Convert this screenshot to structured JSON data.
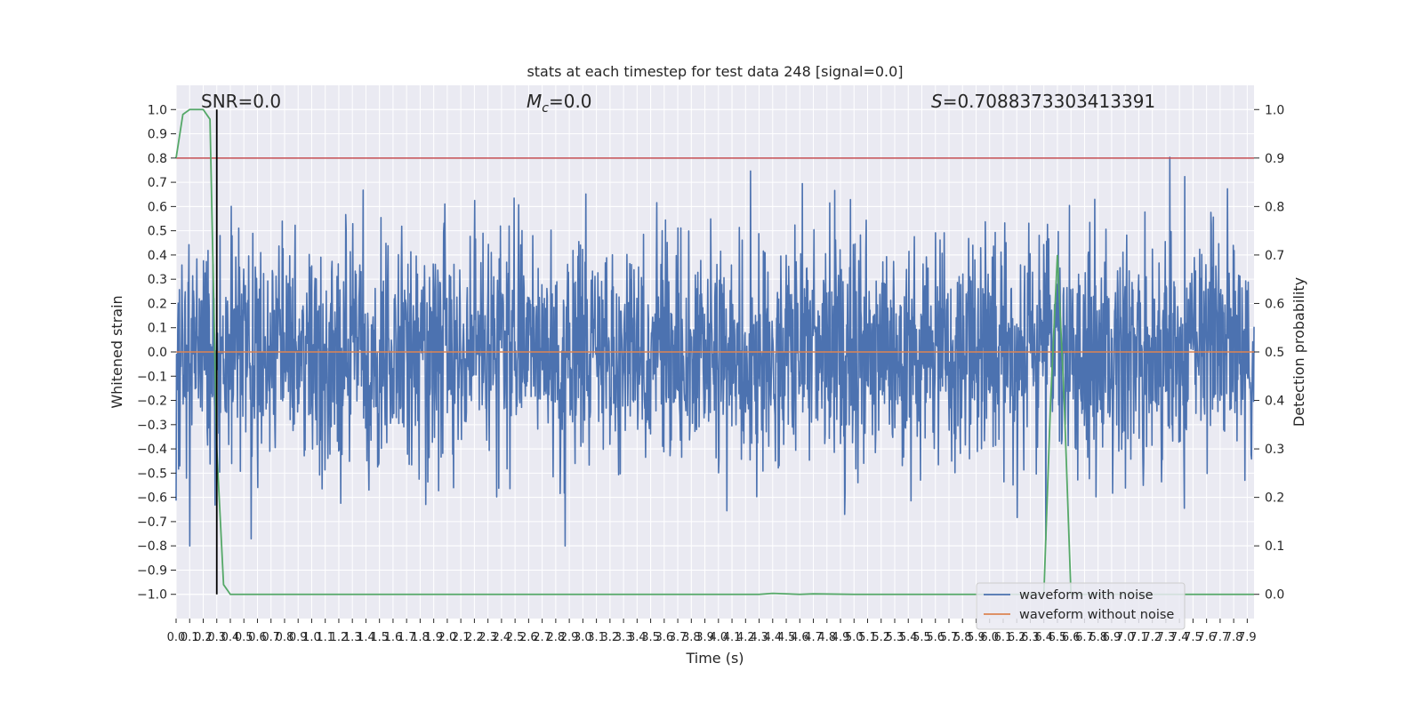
{
  "chart_data": {
    "type": "line",
    "title": "stats at each timestep for test data 248 [signal=0.0]",
    "xlabel": "Time (s)",
    "ylabel": "Whitened strain",
    "y2label": "Detection probability",
    "xlim": [
      0.0,
      7.95
    ],
    "ylim": [
      -1.1,
      1.1
    ],
    "y2lim": [
      -0.05,
      1.05
    ],
    "grid": true,
    "legend_position": "lower right",
    "annotations": {
      "snr": "SNR=0.0",
      "mc_symbol": "M",
      "mc_sub": "c",
      "mc_value": "=0.0",
      "s_symbol": "S",
      "s_value": "=0.7088373303413391"
    },
    "yticks": [
      "1.0",
      "0.9",
      "0.8",
      "0.7",
      "0.6",
      "0.5",
      "0.4",
      "0.3",
      "0.2",
      "0.1",
      "0.0",
      "-0.1",
      "-0.2",
      "-0.3",
      "-0.4",
      "-0.5",
      "-0.6",
      "-0.7",
      "-0.8",
      "-0.9",
      "-1.0"
    ],
    "y2ticks": [
      "1.0",
      "0.9",
      "0.8",
      "0.7",
      "0.6",
      "0.5",
      "0.4",
      "0.3",
      "0.2",
      "0.1",
      "0.0"
    ],
    "series": [
      {
        "name": "waveform with noise",
        "color": "#4c72b0",
        "description": "dense normalized noise spanning approximately -1.0 to 1.0"
      },
      {
        "name": "waveform without noise",
        "color": "#dd8452",
        "x": [
          0.0,
          7.95
        ],
        "y": [
          0.0,
          0.0
        ]
      }
    ],
    "detection_probability": {
      "color": "#55a868",
      "x": [
        0.0,
        0.05,
        0.1,
        0.15,
        0.2,
        0.25,
        0.3,
        0.35,
        0.4,
        0.45,
        1.0,
        2.0,
        3.0,
        4.0,
        4.3,
        4.4,
        4.6,
        4.7,
        5.0,
        6.0,
        6.3,
        6.4,
        6.45,
        6.5,
        6.55,
        6.6,
        7.0,
        7.95
      ],
      "y": [
        0.9,
        0.99,
        1.0,
        1.0,
        1.0,
        0.98,
        0.3,
        0.02,
        0.0,
        0.0,
        0.0,
        0.0,
        0.0,
        0.0,
        0.0,
        0.002,
        0.0,
        0.001,
        0.0,
        0.0,
        0.0,
        0.0,
        0.4,
        0.7,
        0.4,
        0.0,
        0.0,
        0.0
      ]
    },
    "threshold": {
      "color": "#c44e52",
      "y": 0.9
    },
    "marker_line": {
      "color": "#000000",
      "x": 0.3
    }
  },
  "legend": {
    "items": [
      {
        "label": "waveform with noise",
        "color": "#4c72b0"
      },
      {
        "label": "waveform without noise",
        "color": "#dd8452"
      }
    ]
  }
}
